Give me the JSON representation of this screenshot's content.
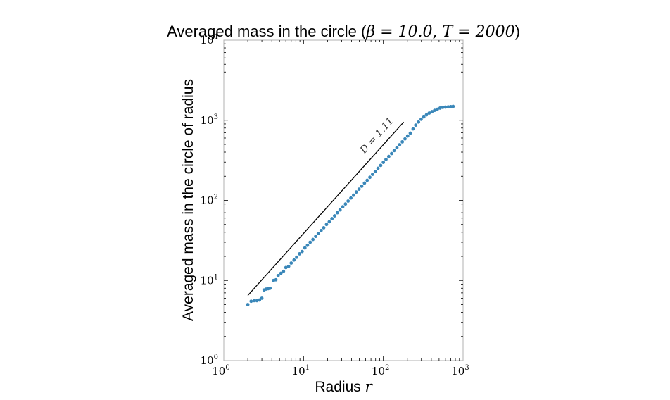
{
  "chart_data": {
    "type": "scatter",
    "title_prefix": "Averaged mass in the circle (",
    "title_beta": "β = 10.0",
    "title_sep": ", ",
    "title_T": "T = 2000",
    "title_suffix": ")",
    "xlabel_text": "Radius ",
    "xlabel_var": "r",
    "ylabel": "Averaged mass in the circle of radius",
    "xscale": "log",
    "yscale": "log",
    "xlim": [
      1,
      1000
    ],
    "ylim": [
      1,
      10000
    ],
    "x_ticks": [
      {
        "base": "10",
        "exp": "0",
        "value": 1
      },
      {
        "base": "10",
        "exp": "1",
        "value": 10
      },
      {
        "base": "10",
        "exp": "2",
        "value": 100
      },
      {
        "base": "10",
        "exp": "3",
        "value": 1000
      }
    ],
    "y_ticks": [
      {
        "base": "10",
        "exp": "0",
        "value": 1
      },
      {
        "base": "10",
        "exp": "1",
        "value": 10
      },
      {
        "base": "10",
        "exp": "2",
        "value": 100
      },
      {
        "base": "10",
        "exp": "3",
        "value": 1000
      },
      {
        "base": "10",
        "exp": "4",
        "value": 10000
      }
    ],
    "point_color": "#3a87b9",
    "fit_line": {
      "label": "D = 1.11",
      "slope": 1.11,
      "x": [
        2.0,
        180.0
      ],
      "y": [
        6.5,
        950.0
      ]
    },
    "points": {
      "x": [
        2.0,
        2.2,
        2.4,
        2.6,
        2.8,
        3.0,
        3.2,
        3.4,
        3.6,
        3.8,
        4.2,
        4.5,
        4.8,
        5.2,
        5.6,
        6.0,
        6.5,
        7.0,
        7.6,
        8.2,
        8.9,
        9.6,
        10.4,
        11.2,
        12.1,
        13.1,
        14.2,
        15.3,
        16.6,
        17.9,
        19.4,
        21.0,
        22.7,
        24.5,
        26.5,
        28.7,
        31.0,
        33.5,
        36.2,
        39.2,
        42.4,
        45.8,
        49.6,
        53.6,
        58.0,
        62.7,
        67.8,
        73.3,
        79.3,
        85.7,
        92.7,
        100,
        108,
        117,
        127,
        137,
        148,
        160,
        173,
        187,
        202,
        218,
        236,
        255,
        276,
        298,
        322,
        348,
        376,
        407,
        440,
        475,
        514,
        555,
        600,
        650,
        700,
        750
      ],
      "y": [
        5.0,
        5.5,
        5.6,
        5.6,
        5.7,
        6.0,
        7.6,
        7.8,
        7.9,
        8.0,
        10.0,
        10.2,
        11.5,
        12.3,
        13.0,
        14.5,
        15.0,
        16.5,
        18.0,
        19.5,
        21.5,
        23.0,
        25.5,
        27.5,
        30.0,
        32.5,
        35.5,
        38.5,
        42.0,
        45.5,
        50.0,
        54.0,
        59.0,
        64.0,
        70.0,
        76.0,
        83.0,
        90.0,
        98.0,
        107,
        116,
        127,
        138,
        150,
        164,
        178,
        194,
        211,
        230,
        251,
        273,
        298,
        324,
        353,
        384,
        418,
        455,
        495,
        538,
        585,
        636,
        690,
        780,
        870,
        950,
        1030,
        1100,
        1170,
        1230,
        1280,
        1330,
        1370,
        1420,
        1450,
        1460,
        1470,
        1480,
        1490
      ]
    }
  }
}
